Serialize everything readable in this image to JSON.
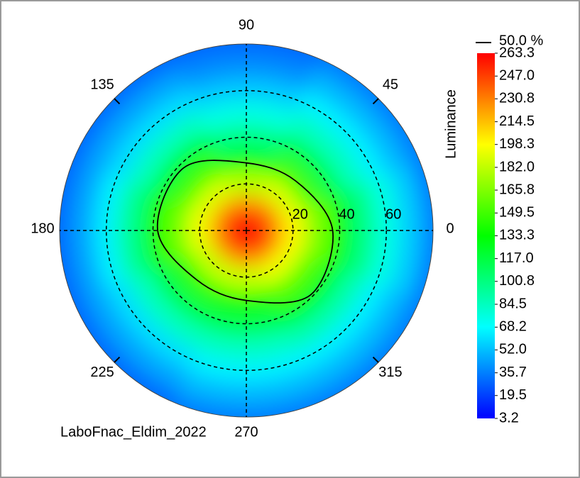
{
  "chart_data": {
    "type": "polar_heatmap",
    "colormap": "jet",
    "center_value": 258,
    "theta": [
      0,
      45,
      90,
      135,
      180,
      225,
      270,
      315
    ],
    "r": [
      10,
      20,
      30,
      40,
      50,
      60,
      70,
      80
    ],
    "values": [
      [
        235,
        200,
        165,
        135,
        100,
        75,
        55,
        35
      ],
      [
        230,
        190,
        150,
        115,
        85,
        65,
        50,
        35
      ],
      [
        225,
        180,
        130,
        100,
        75,
        55,
        40,
        30
      ],
      [
        228,
        190,
        150,
        120,
        85,
        60,
        45,
        30
      ],
      [
        232,
        195,
        160,
        135,
        95,
        65,
        45,
        30
      ],
      [
        228,
        185,
        145,
        115,
        85,
        60,
        45,
        30
      ],
      [
        230,
        185,
        140,
        115,
        85,
        65,
        50,
        35
      ],
      [
        232,
        195,
        155,
        125,
        90,
        65,
        50,
        35
      ]
    ],
    "rlim": [
      0,
      80
    ],
    "rticks": [
      20,
      40,
      60
    ],
    "thetaticks": [
      0,
      45,
      90,
      135,
      180,
      225,
      270,
      315
    ],
    "contour": {
      "name": "50.0 %",
      "color": "#000000",
      "theta": [
        0,
        45,
        90,
        135,
        180,
        225,
        270,
        315
      ],
      "r": [
        37,
        30,
        29,
        38,
        38,
        30,
        30,
        39
      ]
    },
    "colorbar": {
      "label": "Luminance",
      "lim": [
        3.2,
        263.3
      ],
      "ticks": [
        263.3,
        {
          "value": 247,
          "label": "247.0"
        },
        230.8,
        214.5,
        198.3,
        {
          "value": 182,
          "label": "182.0"
        },
        165.8,
        149.5,
        133.3,
        {
          "value": 117,
          "label": "117.0"
        },
        100.8,
        84.5,
        68.2,
        {
          "value": 52,
          "label": "52.0"
        },
        35.7,
        19.5,
        3.2
      ]
    },
    "footer": "LaboFnac_Eldim_2022"
  }
}
